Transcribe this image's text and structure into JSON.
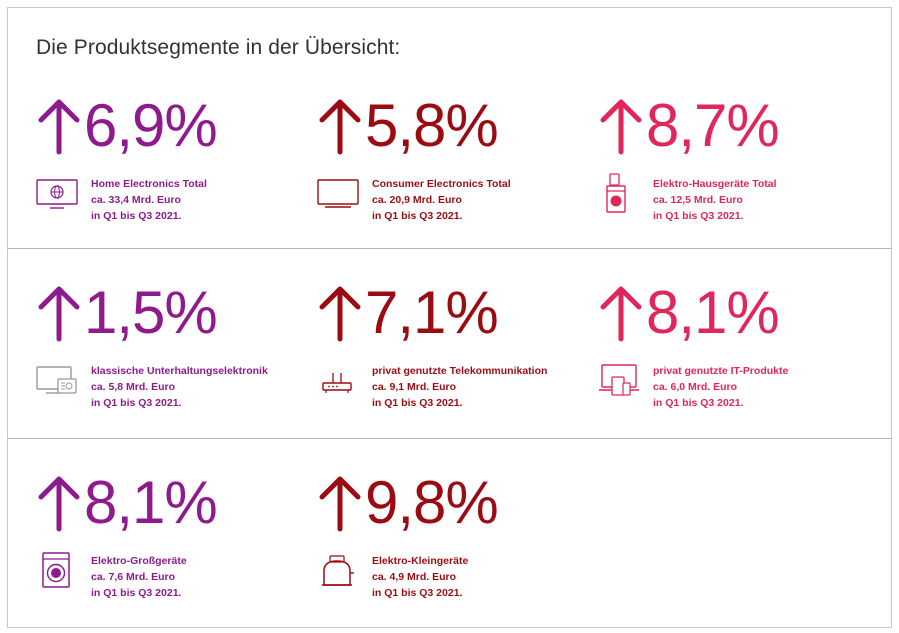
{
  "title": "Die Produktsegmente in der Übersicht:",
  "colors": {
    "purple": "#8e1a8e",
    "darkred": "#9b0c12",
    "pink": "#e0265a"
  },
  "segments": [
    {
      "percent": "6,9%",
      "name": "Home Electronics Total",
      "amount": "ca. 33,4 Mrd. Euro",
      "period": "in Q1 bis Q3 2021.",
      "icon": "monitor-globe-icon"
    },
    {
      "percent": "5,8%",
      "name": "Consumer Electronics Total",
      "amount": "ca. 20,9 Mrd. Euro",
      "period": "in Q1 bis Q3 2021.",
      "icon": "tv-icon"
    },
    {
      "percent": "8,7%",
      "name": "Elektro-Hausgeräte Total",
      "amount": "ca. 12,5 Mrd. Euro",
      "period": "in Q1 bis Q3 2021.",
      "icon": "kitchen-appliances-icon"
    },
    {
      "percent": "1,5%",
      "name": "klassische Unterhaltungselektronik",
      "amount": "ca. 5,8 Mrd. Euro",
      "period": "in Q1 bis Q3 2021.",
      "icon": "tv-radio-icon"
    },
    {
      "percent": "7,1%",
      "name": "privat genutzte Telekommunikation",
      "amount": "ca. 9,1 Mrd. Euro",
      "period": "in Q1 bis Q3 2021.",
      "icon": "router-icon"
    },
    {
      "percent": "8,1%",
      "name": "privat genutzte IT-Produkte",
      "amount": "ca. 6,0 Mrd. Euro",
      "period": "in Q1 bis Q3 2021.",
      "icon": "laptop-devices-icon"
    },
    {
      "percent": "8,1%",
      "name": "Elektro-Großgeräte",
      "amount": "ca. 7,6 Mrd. Euro",
      "period": "in Q1 bis Q3 2021.",
      "icon": "washing-machine-icon"
    },
    {
      "percent": "9,8%",
      "name": "Elektro-Kleingeräte",
      "amount": "ca. 4,9 Mrd. Euro",
      "period": "in Q1 bis Q3 2021.",
      "icon": "toaster-icon"
    }
  ]
}
